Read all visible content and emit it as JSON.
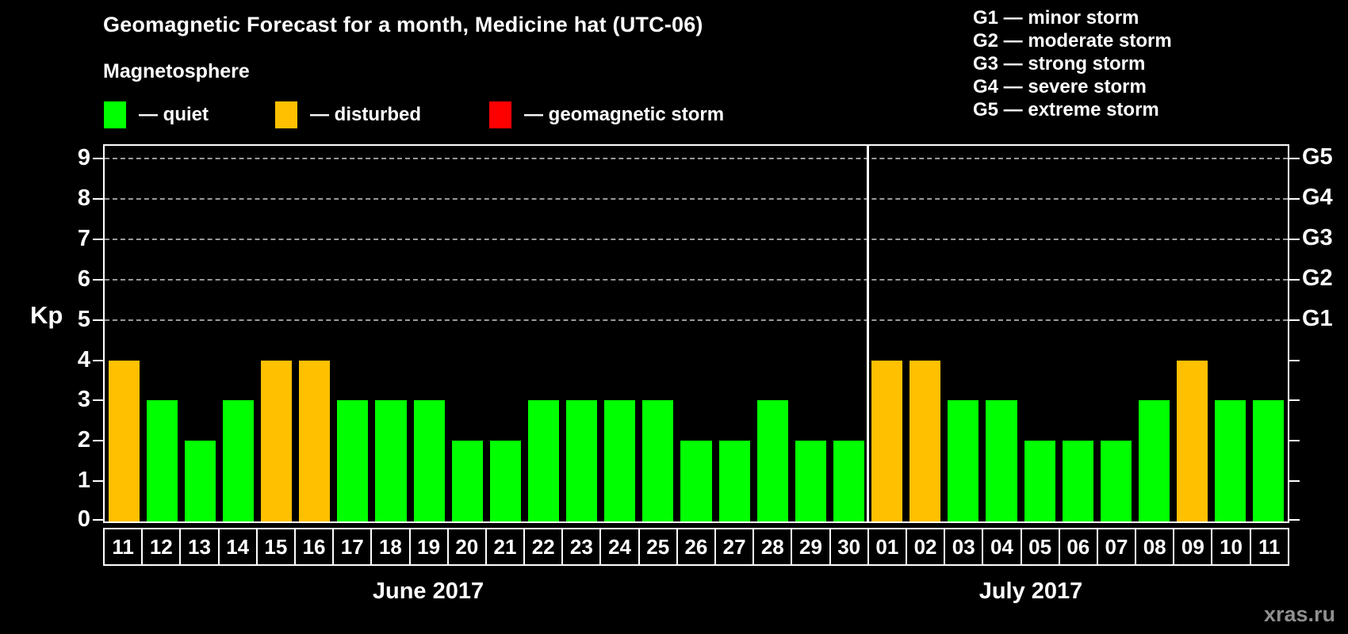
{
  "header": {
    "title": "Geomagnetic Forecast for a month, Medicine hat (UTC-06)",
    "subtitle": "Magnetosphere"
  },
  "legend": {
    "items": [
      {
        "name": "quiet",
        "label": "— quiet",
        "color": "#00ff00"
      },
      {
        "name": "disturbed",
        "label": "— disturbed",
        "color": "#ffc000"
      },
      {
        "name": "storm",
        "label": "— geomagnetic storm",
        "color": "#ff0000"
      }
    ]
  },
  "storm_scale_legend": {
    "items": [
      "G1 — minor storm",
      "G2 — moderate storm",
      "G3 — strong storm",
      "G4 — severe storm",
      "G5 — extreme storm"
    ]
  },
  "chart_data": {
    "type": "bar",
    "ylabel": "Kp",
    "ylim": [
      0,
      9.32
    ],
    "yticks": [
      0,
      1,
      2,
      3,
      4,
      5,
      6,
      7,
      8,
      9
    ],
    "gridlines_at": [
      5,
      6,
      7,
      8,
      9
    ],
    "right_axis_labels": [
      {
        "kp": 5,
        "label": "G1"
      },
      {
        "kp": 6,
        "label": "G2"
      },
      {
        "kp": 7,
        "label": "G3"
      },
      {
        "kp": 8,
        "label": "G4"
      },
      {
        "kp": 9,
        "label": "G5"
      }
    ],
    "months": [
      {
        "label": "June 2017",
        "label_center_x": 540,
        "days": [
          {
            "day": "11",
            "kp": 4,
            "state": "disturbed"
          },
          {
            "day": "12",
            "kp": 3,
            "state": "quiet"
          },
          {
            "day": "13",
            "kp": 2,
            "state": "quiet"
          },
          {
            "day": "14",
            "kp": 3,
            "state": "quiet"
          },
          {
            "day": "15",
            "kp": 4,
            "state": "disturbed"
          },
          {
            "day": "16",
            "kp": 4,
            "state": "disturbed"
          },
          {
            "day": "17",
            "kp": 3,
            "state": "quiet"
          },
          {
            "day": "18",
            "kp": 3,
            "state": "quiet"
          },
          {
            "day": "19",
            "kp": 3,
            "state": "quiet"
          },
          {
            "day": "20",
            "kp": 2,
            "state": "quiet"
          },
          {
            "day": "21",
            "kp": 2,
            "state": "quiet"
          },
          {
            "day": "22",
            "kp": 3,
            "state": "quiet"
          },
          {
            "day": "23",
            "kp": 3,
            "state": "quiet"
          },
          {
            "day": "24",
            "kp": 3,
            "state": "quiet"
          },
          {
            "day": "25",
            "kp": 3,
            "state": "quiet"
          },
          {
            "day": "26",
            "kp": 2,
            "state": "quiet"
          },
          {
            "day": "27",
            "kp": 2,
            "state": "quiet"
          },
          {
            "day": "28",
            "kp": 3,
            "state": "quiet"
          },
          {
            "day": "29",
            "kp": 2,
            "state": "quiet"
          },
          {
            "day": "30",
            "kp": 2,
            "state": "quiet"
          }
        ]
      },
      {
        "label": "July 2017",
        "label_center_x": 1300,
        "days": [
          {
            "day": "01",
            "kp": 4,
            "state": "disturbed"
          },
          {
            "day": "02",
            "kp": 4,
            "state": "disturbed"
          },
          {
            "day": "03",
            "kp": 3,
            "state": "quiet"
          },
          {
            "day": "04",
            "kp": 3,
            "state": "quiet"
          },
          {
            "day": "05",
            "kp": 2,
            "state": "quiet"
          },
          {
            "day": "06",
            "kp": 2,
            "state": "quiet"
          },
          {
            "day": "07",
            "kp": 2,
            "state": "quiet"
          },
          {
            "day": "08",
            "kp": 3,
            "state": "quiet"
          },
          {
            "day": "09",
            "kp": 4,
            "state": "disturbed"
          },
          {
            "day": "10",
            "kp": 3,
            "state": "quiet"
          },
          {
            "day": "11",
            "kp": 3,
            "state": "quiet"
          }
        ]
      }
    ]
  },
  "colors": {
    "background": "#000000",
    "quiet": "#00ff00",
    "disturbed": "#ffc000",
    "storm": "#ff0000",
    "grid": "#9a9a9a",
    "axis": "#ffffff"
  },
  "watermark": "xras.ru"
}
